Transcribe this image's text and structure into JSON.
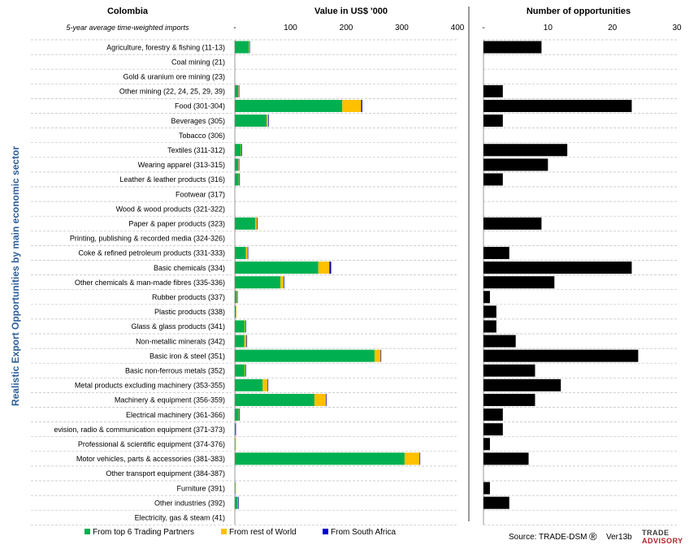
{
  "country": "Colombia",
  "subtitle": "5-year average time-weighted imports",
  "ylabel": "Realistic Export Opportunities by main economic sector",
  "source": "Source: TRADE-DSM",
  "registered": "®",
  "version": "Ver13b",
  "logo": {
    "line1": "TRADE",
    "line2": "ADVISORY"
  },
  "colors": {
    "top6": "#00b050",
    "rest": "#ffc000",
    "sa": "#0000cc",
    "opps": "#000000",
    "grid": "#bfbfbf",
    "ylabel": "#2e5f9a"
  },
  "chart_data": [
    {
      "type": "bar",
      "orientation": "horizontal",
      "stacked": true,
      "title": "Value in US$ '000",
      "xlim": [
        0,
        400
      ],
      "ticks": [
        "-",
        "100",
        "200",
        "300",
        "400"
      ],
      "tick_values": [
        0,
        100,
        200,
        300,
        400
      ],
      "legend_position": "bottom",
      "categories": [
        "Agriculture, forestry & fishing (11-13)",
        "Coal mining (21)",
        "Gold & uranium ore mining (23)",
        "Other mining (22, 24, 25, 29, 39)",
        "Food (301-304)",
        "Beverages (305)",
        "Tobacco (306)",
        "Textiles (311-312)",
        "Wearing apparel (313-315)",
        "Leather & leather products (316)",
        "Footwear (317)",
        "Wood & wood products (321-322)",
        "Paper & paper products (323)",
        "Printing, publishing & recorded media (324-326)",
        "Coke & refined petroleum products (331-333)",
        "Basic chemicals (334)",
        "Other chemicals & man-made fibres (335-336)",
        "Rubber products (337)",
        "Plastic products (338)",
        "Glass & glass products (341)",
        "Non-metallic minerals (342)",
        "Basic iron & steel (351)",
        "Basic non-ferrous metals (352)",
        "Metal products excluding machinery (353-355)",
        "Machinery & equipment (356-359)",
        "Electrical machinery (361-366)",
        "evision, radio & communication equipment (371-373)",
        "Professional & scientific equipment (374-376)",
        "Motor vehicles, parts & accessories (381-383)",
        "Other transport equipment (384-387)",
        "Furniture (391)",
        "Other industries (392)",
        "Electricity, gas & steam (41)"
      ],
      "series": [
        {
          "name": "From top 6 Trading Partners",
          "values": [
            25,
            0,
            0,
            6,
            193,
            57,
            0,
            11,
            6,
            7,
            0,
            0,
            37,
            0,
            20,
            150,
            82,
            3,
            2,
            18,
            17,
            251,
            18,
            50,
            143,
            7,
            1,
            1,
            305,
            0,
            1,
            5,
            0
          ]
        },
        {
          "name": "From rest of World",
          "values": [
            1,
            0,
            0,
            1,
            34,
            3,
            0,
            1,
            1,
            1,
            0,
            0,
            3,
            0,
            3,
            20,
            6,
            1,
            1,
            1,
            4,
            11,
            1,
            9,
            21,
            1,
            0,
            1,
            27,
            0,
            1,
            1,
            0
          ]
        },
        {
          "name": "From South Africa",
          "values": [
            1,
            0,
            0,
            1,
            2,
            1,
            0,
            1,
            1,
            1,
            0,
            0,
            1,
            0,
            1,
            3,
            1,
            1,
            0,
            1,
            1,
            1,
            1,
            1,
            1,
            1,
            1,
            0,
            1,
            0,
            0,
            1,
            0
          ]
        }
      ]
    },
    {
      "type": "bar",
      "orientation": "horizontal",
      "title": "Number of opportunities",
      "xlim": [
        0,
        30
      ],
      "ticks": [
        "-",
        "10",
        "20",
        "30"
      ],
      "tick_values": [
        0,
        10,
        20,
        30
      ],
      "values": [
        9,
        0,
        0,
        3,
        23,
        3,
        0,
        13,
        10,
        3,
        0,
        0,
        9,
        0,
        4,
        23,
        11,
        1,
        2,
        2,
        5,
        24,
        8,
        12,
        8,
        3,
        3,
        1,
        7,
        0,
        1,
        4,
        0
      ]
    }
  ]
}
